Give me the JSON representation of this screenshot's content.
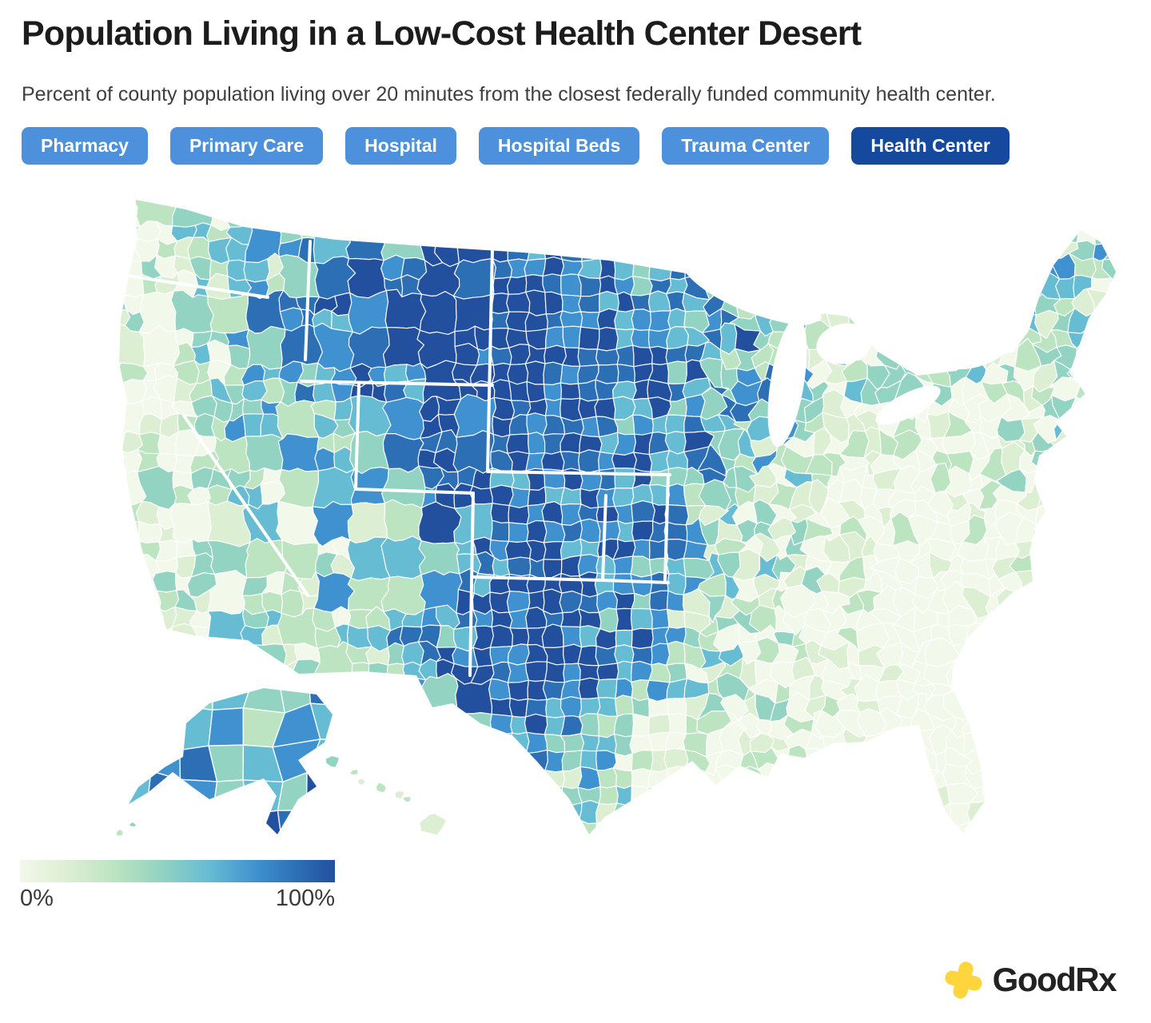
{
  "header": {
    "title": "Population Living in a Low-Cost Health Center Desert",
    "subtitle": "Percent of county population living over 20 minutes from the closest federally funded community health center."
  },
  "filters": [
    {
      "label": "Pharmacy",
      "active": false
    },
    {
      "label": "Primary Care",
      "active": false
    },
    {
      "label": "Hospital",
      "active": false
    },
    {
      "label": "Hospital Beds",
      "active": false
    },
    {
      "label": "Trauma Center",
      "active": false
    },
    {
      "label": "Health Center",
      "active": true
    }
  ],
  "map": {
    "type": "choropleth",
    "region": "United States counties (contiguous US with Alaska and Hawaii insets)",
    "metric": "Percent of county population living over 20 minutes from the closest federally funded community health center",
    "scale": {
      "min_label": "0%",
      "max_label": "100%",
      "palette": [
        "#f2f8ea",
        "#ddefd2",
        "#bce4c0",
        "#92d3c1",
        "#66bcd3",
        "#3f92cf",
        "#2c6fb5",
        "#22509e"
      ]
    },
    "pattern_summary": "Highest percentages (dark blue) concentrate in the Great Plains, Mountain West, west Texas and Alaska; lowest (pale green) along the Pacific coast, Southeast, Florida, south Texas and the urban Midwest/Northeast."
  },
  "legend": {
    "min_label": "0%",
    "max_label": "100%"
  },
  "branding": {
    "name": "GoodRx"
  },
  "colors": {
    "filter_button": "#4D90DB",
    "filter_button_active": "#14499E",
    "title_text": "#1c1c1c",
    "subtitle_text": "#3f3f3f",
    "brand_cross": "#FFD53D",
    "brand_text": "#222222",
    "county_border": "#ffffff"
  }
}
